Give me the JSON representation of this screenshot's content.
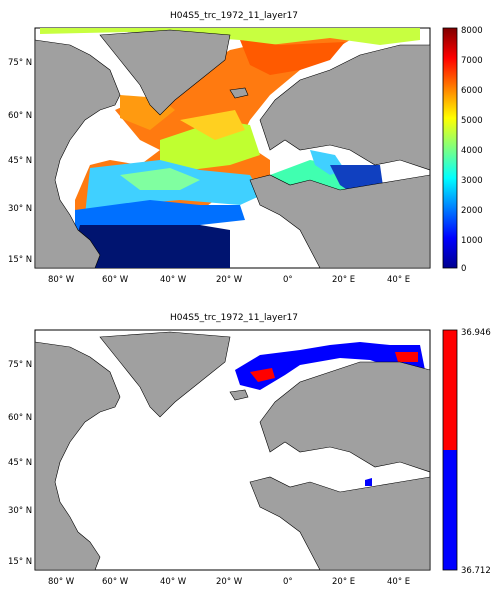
{
  "panels": [
    {
      "title": "H04S5_trc_1972_11_layer17",
      "lat_labels": [
        "75° N",
        "60° N",
        "45° N",
        "30° N",
        "15° N"
      ],
      "lon_labels": [
        "80° W",
        "60° W",
        "40° W",
        "20° W",
        "0°",
        "20° E",
        "40° E"
      ],
      "colorbar": {
        "colormap": "jet",
        "ticks": [
          "8000",
          "7000",
          "6000",
          "5000",
          "4000",
          "3000",
          "2000",
          "1000",
          "0"
        ],
        "range": [
          0,
          8000
        ]
      }
    },
    {
      "title": "H04S5_trc_1972_11_layer17",
      "lat_labels": [
        "75° N",
        "60° N",
        "45° N",
        "30° N",
        "15° N"
      ],
      "lon_labels": [
        "80° W",
        "60° W",
        "40° W",
        "20° W",
        "0°",
        "20° E",
        "40° E"
      ],
      "colorbar": {
        "colormap": "two-color",
        "ticks": [
          "36.946",
          "36.712"
        ],
        "colors": [
          "#ff0000",
          "#0000ff"
        ],
        "range": [
          36.712,
          36.946
        ]
      }
    }
  ],
  "colors": {
    "land": "#a0a0a0",
    "ocean": "#ffffff"
  }
}
